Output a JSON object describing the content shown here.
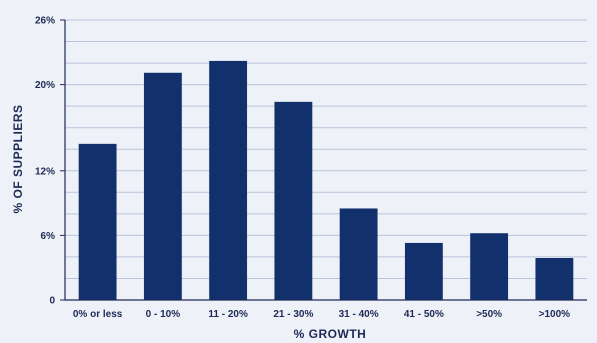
{
  "chart_data": {
    "type": "bar",
    "categories": [
      "0% or less",
      "0 - 10%",
      "11 - 20%",
      "21 - 30%",
      "31 - 40%",
      "41 - 50%",
      ">50%",
      ">100%"
    ],
    "values": [
      14.5,
      21.1,
      22.2,
      18.4,
      8.5,
      5.3,
      6.2,
      3.9
    ],
    "xlabel": "% GROWTH",
    "ylabel": "% OF SUPPLIERS",
    "ylim": [
      0,
      26
    ],
    "yticks": [
      0,
      6,
      12,
      20,
      26
    ],
    "ytick_labels": [
      "0",
      "6%",
      "12%",
      "20%",
      "26%"
    ],
    "grid": true,
    "colors": {
      "bar": "#12306b",
      "grid": "#b9c3da",
      "axis": "#1d2a55",
      "background": "#eef1f7"
    }
  }
}
